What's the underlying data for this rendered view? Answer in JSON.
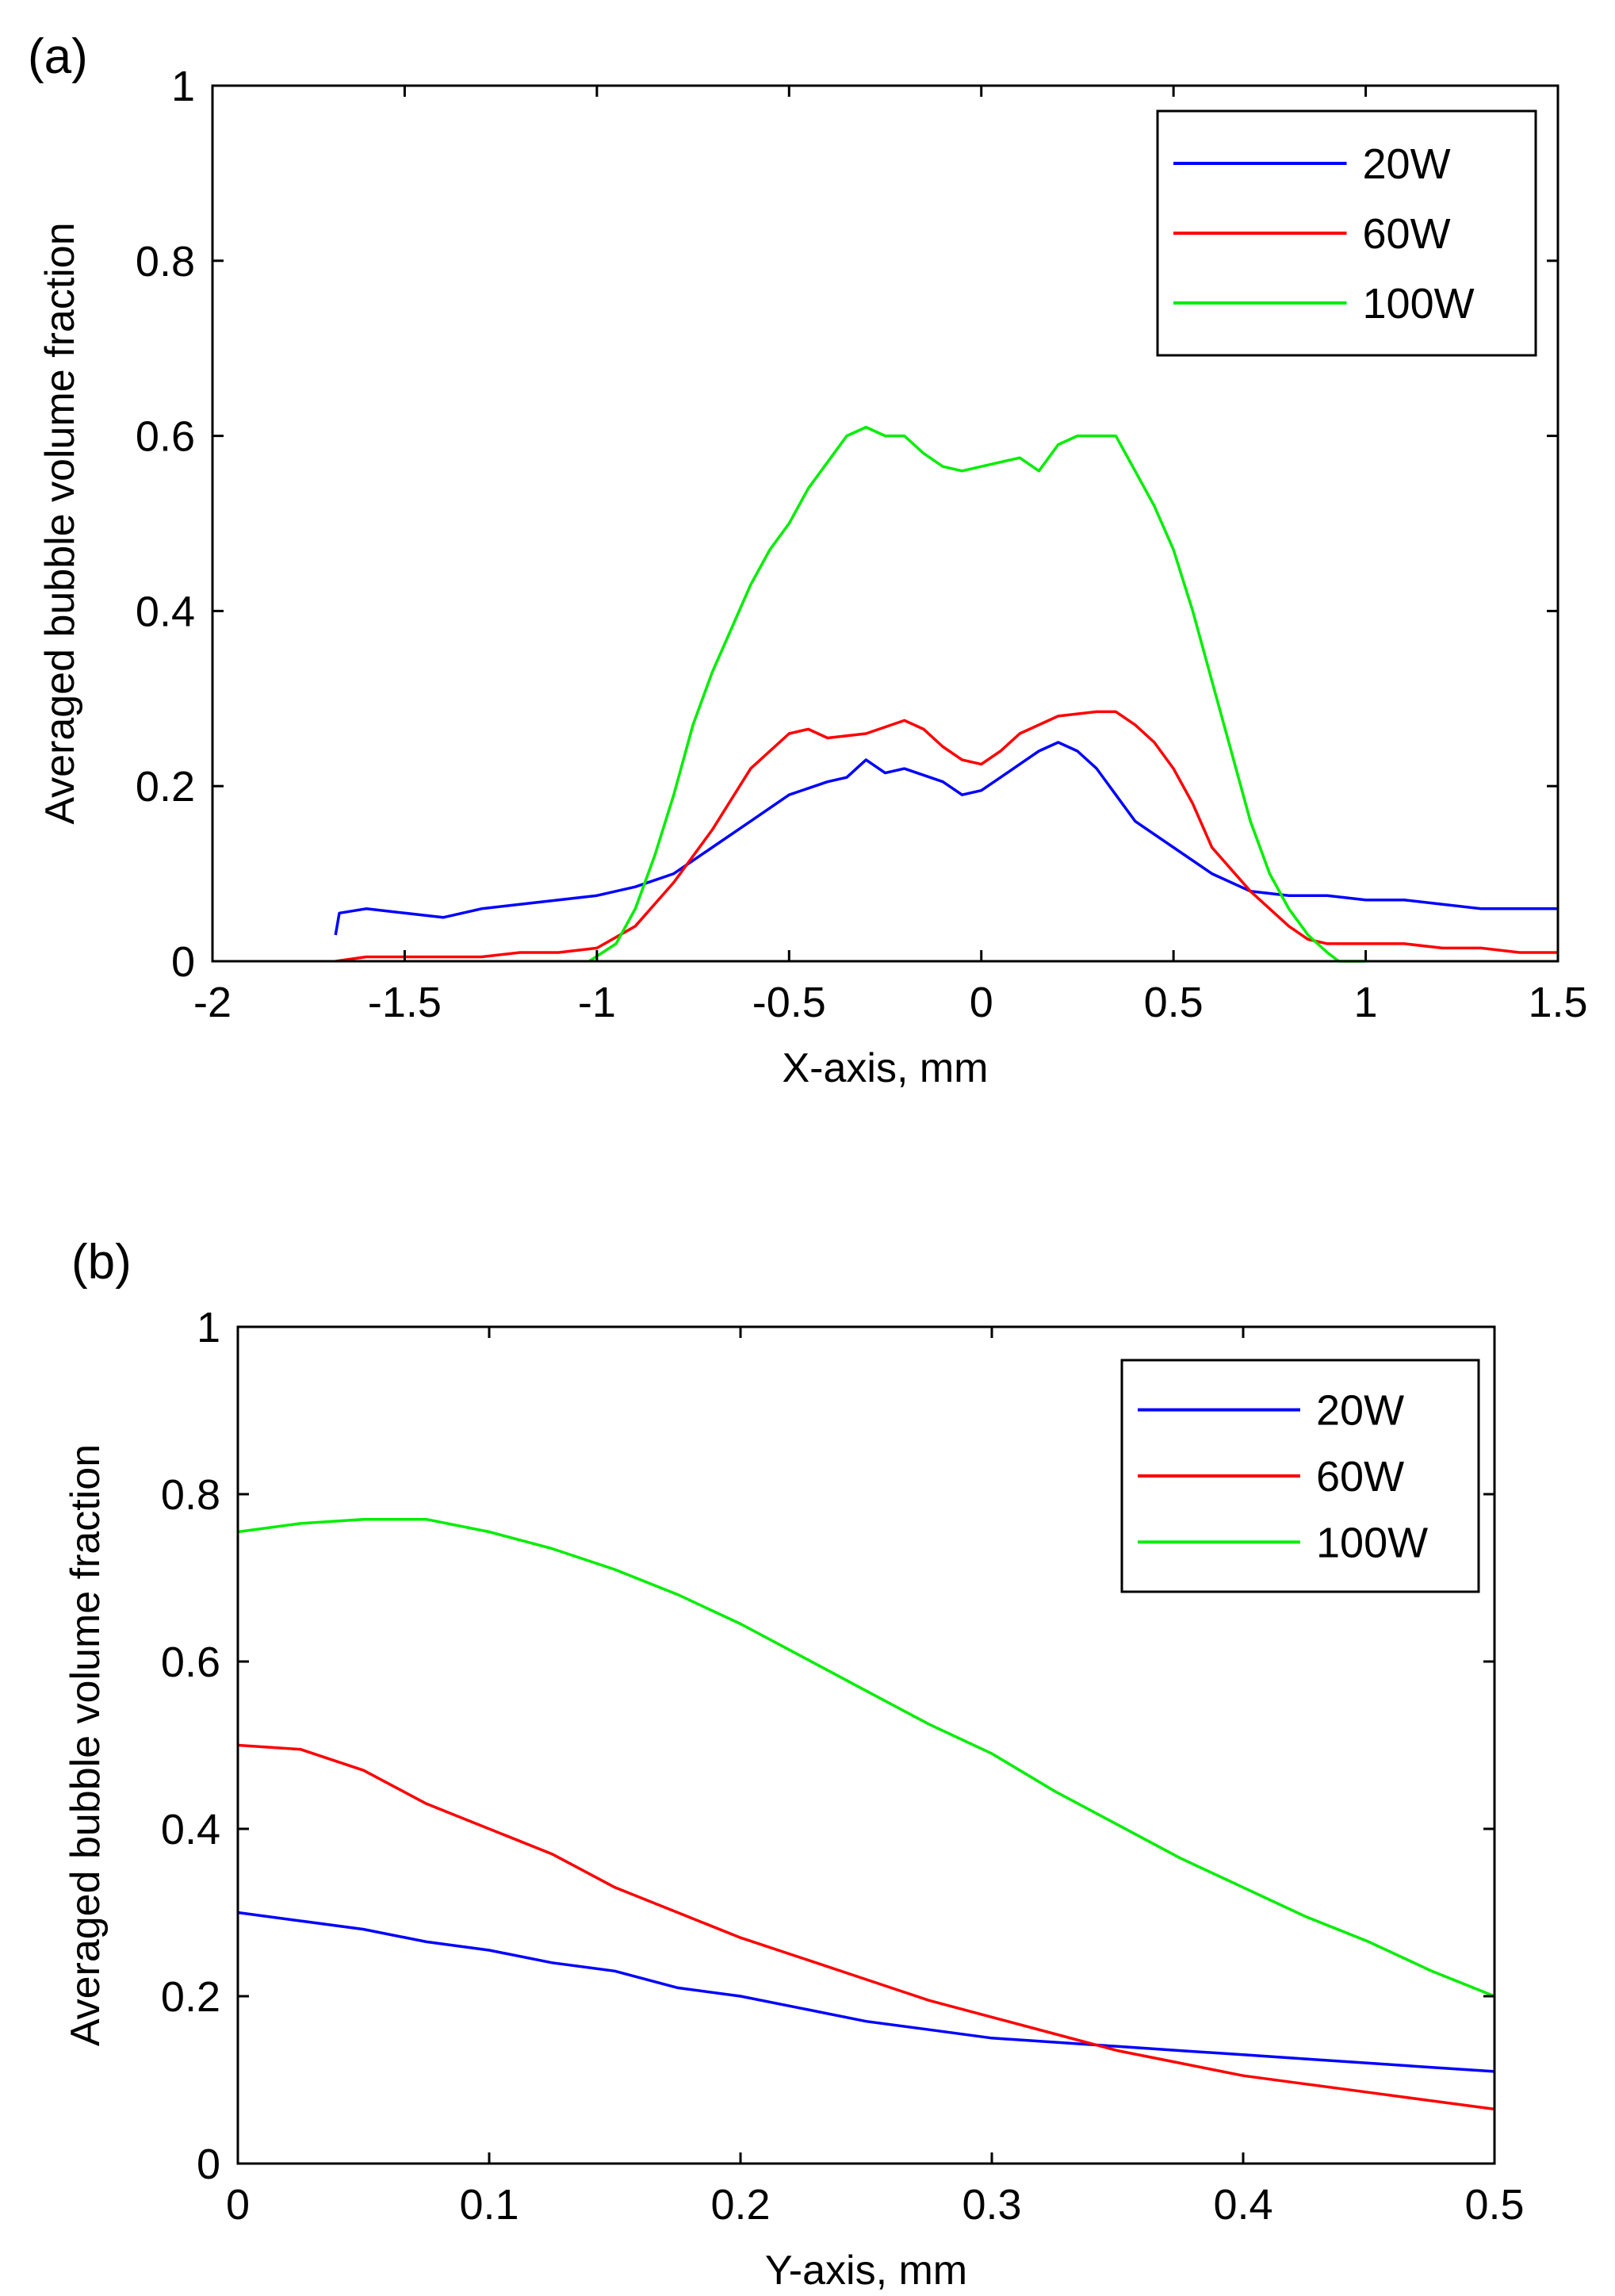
{
  "chart_data": [
    {
      "panel_label": "(a)",
      "type": "line",
      "xlabel": "X-axis, mm",
      "ylabel": "Averaged bubble volume fraction",
      "xlim": [
        -2,
        1.5
      ],
      "ylim": [
        0,
        1
      ],
      "xticks": [
        "-2",
        "-1.5",
        "-1",
        "-0.5",
        "0",
        "0.5",
        "1",
        "1.5"
      ],
      "yticks": [
        "0",
        "0.2",
        "0.4",
        "0.6",
        "0.8",
        "1"
      ],
      "legend_position": "top-right",
      "series": [
        {
          "name": "20W",
          "color": "#0000ff",
          "x": [
            -1.68,
            -1.67,
            -1.6,
            -1.5,
            -1.4,
            -1.3,
            -1.2,
            -1.1,
            -1.0,
            -0.9,
            -0.8,
            -0.7,
            -0.6,
            -0.5,
            -0.4,
            -0.35,
            -0.3,
            -0.25,
            -0.2,
            -0.1,
            -0.05,
            0.0,
            0.05,
            0.1,
            0.15,
            0.2,
            0.25,
            0.3,
            0.35,
            0.4,
            0.5,
            0.6,
            0.7,
            0.8,
            0.9,
            1.0,
            1.1,
            1.2,
            1.3,
            1.4,
            1.5
          ],
          "y": [
            0.03,
            0.055,
            0.06,
            0.055,
            0.05,
            0.06,
            0.065,
            0.07,
            0.075,
            0.085,
            0.1,
            0.13,
            0.16,
            0.19,
            0.205,
            0.21,
            0.23,
            0.215,
            0.22,
            0.205,
            0.19,
            0.195,
            0.21,
            0.225,
            0.24,
            0.25,
            0.24,
            0.22,
            0.19,
            0.16,
            0.13,
            0.1,
            0.08,
            0.075,
            0.075,
            0.07,
            0.07,
            0.065,
            0.06,
            0.06,
            0.06
          ]
        },
        {
          "name": "60W",
          "color": "#ff0000",
          "x": [
            -1.68,
            -1.6,
            -1.5,
            -1.4,
            -1.3,
            -1.2,
            -1.1,
            -1.0,
            -0.9,
            -0.8,
            -0.7,
            -0.6,
            -0.5,
            -0.45,
            -0.4,
            -0.3,
            -0.2,
            -0.15,
            -0.1,
            -0.05,
            0.0,
            0.05,
            0.1,
            0.2,
            0.3,
            0.35,
            0.4,
            0.45,
            0.5,
            0.55,
            0.6,
            0.7,
            0.8,
            0.85,
            0.9,
            1.0,
            1.1,
            1.2,
            1.3,
            1.4,
            1.5
          ],
          "y": [
            0.0,
            0.005,
            0.005,
            0.005,
            0.005,
            0.01,
            0.01,
            0.015,
            0.04,
            0.09,
            0.15,
            0.22,
            0.26,
            0.265,
            0.255,
            0.26,
            0.275,
            0.265,
            0.245,
            0.23,
            0.225,
            0.24,
            0.26,
            0.28,
            0.285,
            0.285,
            0.27,
            0.25,
            0.22,
            0.18,
            0.13,
            0.08,
            0.04,
            0.025,
            0.02,
            0.02,
            0.02,
            0.015,
            0.015,
            0.01,
            0.01
          ]
        },
        {
          "name": "100W",
          "color": "#00ee00",
          "x": [
            -1.02,
            -0.95,
            -0.9,
            -0.85,
            -0.8,
            -0.75,
            -0.7,
            -0.65,
            -0.6,
            -0.55,
            -0.5,
            -0.45,
            -0.4,
            -0.35,
            -0.3,
            -0.25,
            -0.2,
            -0.15,
            -0.1,
            -0.05,
            0.0,
            0.05,
            0.1,
            0.15,
            0.2,
            0.25,
            0.3,
            0.35,
            0.4,
            0.45,
            0.5,
            0.55,
            0.6,
            0.65,
            0.7,
            0.75,
            0.8,
            0.85,
            0.9,
            0.93,
            1.0
          ],
          "y": [
            0.0,
            0.02,
            0.06,
            0.12,
            0.19,
            0.27,
            0.33,
            0.38,
            0.43,
            0.47,
            0.5,
            0.54,
            0.57,
            0.6,
            0.61,
            0.6,
            0.6,
            0.58,
            0.565,
            0.56,
            0.565,
            0.57,
            0.575,
            0.56,
            0.59,
            0.6,
            0.6,
            0.6,
            0.56,
            0.52,
            0.47,
            0.4,
            0.32,
            0.24,
            0.16,
            0.1,
            0.06,
            0.03,
            0.01,
            0.0,
            0.0
          ]
        }
      ]
    },
    {
      "panel_label": "(b)",
      "type": "line",
      "xlabel": "Y-axis, mm",
      "ylabel": "Averaged bubble volume fraction",
      "xlim": [
        0,
        0.5
      ],
      "ylim": [
        0,
        1
      ],
      "xticks": [
        "0",
        "0.1",
        "0.2",
        "0.3",
        "0.4",
        "0.5"
      ],
      "yticks": [
        "0",
        "0.2",
        "0.4",
        "0.6",
        "0.8",
        "1"
      ],
      "legend_position": "top-right",
      "series": [
        {
          "name": "20W",
          "color": "#0000ff",
          "x": [
            0,
            0.025,
            0.05,
            0.075,
            0.1,
            0.125,
            0.15,
            0.175,
            0.2,
            0.225,
            0.25,
            0.275,
            0.3,
            0.325,
            0.35,
            0.375,
            0.4,
            0.425,
            0.45,
            0.475,
            0.5
          ],
          "y": [
            0.3,
            0.29,
            0.28,
            0.265,
            0.255,
            0.24,
            0.23,
            0.21,
            0.2,
            0.185,
            0.17,
            0.16,
            0.15,
            0.145,
            0.14,
            0.135,
            0.13,
            0.125,
            0.12,
            0.115,
            0.11
          ]
        },
        {
          "name": "60W",
          "color": "#ff0000",
          "x": [
            0,
            0.025,
            0.05,
            0.075,
            0.1,
            0.125,
            0.15,
            0.175,
            0.2,
            0.225,
            0.25,
            0.275,
            0.3,
            0.325,
            0.35,
            0.375,
            0.4,
            0.425,
            0.45,
            0.475,
            0.5
          ],
          "y": [
            0.5,
            0.495,
            0.47,
            0.43,
            0.4,
            0.37,
            0.33,
            0.3,
            0.27,
            0.245,
            0.22,
            0.195,
            0.175,
            0.155,
            0.135,
            0.12,
            0.105,
            0.095,
            0.085,
            0.075,
            0.065
          ]
        },
        {
          "name": "100W",
          "color": "#00ee00",
          "x": [
            0,
            0.025,
            0.05,
            0.075,
            0.1,
            0.125,
            0.15,
            0.175,
            0.2,
            0.225,
            0.25,
            0.275,
            0.3,
            0.325,
            0.35,
            0.375,
            0.4,
            0.425,
            0.45,
            0.475,
            0.5
          ],
          "y": [
            0.755,
            0.765,
            0.77,
            0.77,
            0.755,
            0.735,
            0.71,
            0.68,
            0.645,
            0.605,
            0.565,
            0.525,
            0.49,
            0.445,
            0.405,
            0.365,
            0.33,
            0.295,
            0.265,
            0.23,
            0.2
          ]
        }
      ]
    }
  ]
}
